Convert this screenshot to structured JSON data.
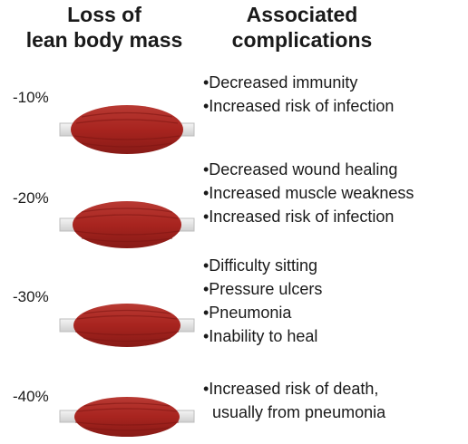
{
  "headers": {
    "left": [
      "Loss of",
      "lean body mass"
    ],
    "right": [
      "Associated",
      "complications"
    ]
  },
  "rows": [
    {
      "percent": "-10%",
      "items": [
        "•Decreased immunity",
        "•Increased risk of infection"
      ]
    },
    {
      "percent": "-20%",
      "items": [
        "•Decreased wound healing",
        "•Increased muscle weakness",
        "•Increased risk of infection"
      ]
    },
    {
      "percent": "-30%",
      "items": [
        "•Difficulty sitting",
        "•Pressure ulcers",
        "•Pneumonia",
        "•Inability to heal"
      ]
    },
    {
      "percent": "-40%",
      "items": [
        "•Increased risk of death,",
        "usually from pneumonia"
      ]
    }
  ],
  "colors": {
    "muscle": "#a8241f",
    "muscle_dark": "#7e1612",
    "tendon": "#e6e6e6"
  }
}
